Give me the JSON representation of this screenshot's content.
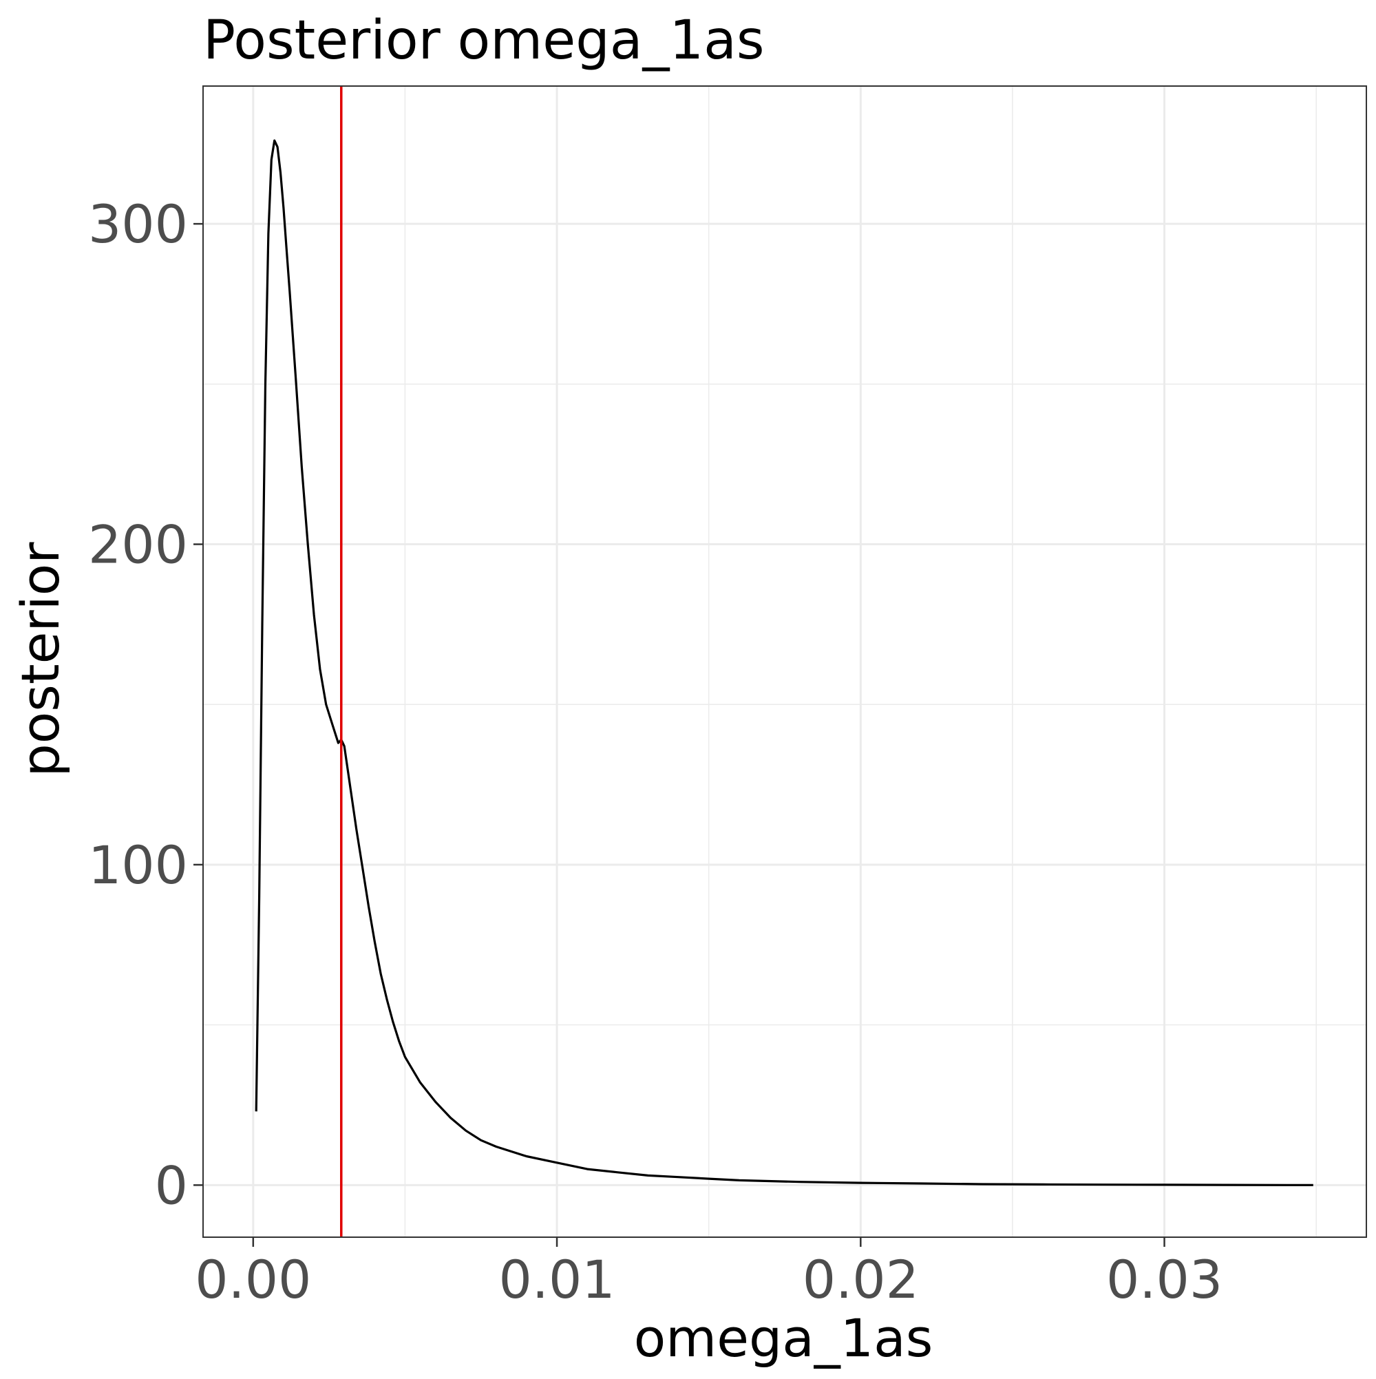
{
  "chart_data": {
    "type": "line",
    "title": "Posterior omega_1as",
    "xlabel": "omega_1as",
    "ylabel": "posterior",
    "xlim": [
      -0.00165,
      0.03665
    ],
    "ylim": [
      -16.25,
      343.0
    ],
    "x_ticks": [
      {
        "value": 0.0,
        "label": "0.00"
      },
      {
        "value": 0.01,
        "label": "0.01"
      },
      {
        "value": 0.02,
        "label": "0.02"
      },
      {
        "value": 0.03,
        "label": "0.03"
      }
    ],
    "x_minor_ticks": [
      0.005,
      0.015,
      0.025,
      0.035
    ],
    "y_ticks": [
      {
        "value": 0,
        "label": "0"
      },
      {
        "value": 100,
        "label": "100"
      },
      {
        "value": 200,
        "label": "200"
      },
      {
        "value": 300,
        "label": "300"
      }
    ],
    "y_minor_ticks": [
      50,
      150,
      250
    ],
    "grid": true,
    "series": [
      {
        "color": "#000000",
        "x": [
          0.0001,
          0.0002,
          0.0003,
          0.0004,
          0.0005,
          0.0006,
          0.0007,
          0.0008,
          0.0009,
          0.001,
          0.0011,
          0.0012,
          0.0014,
          0.0016,
          0.0018,
          0.002,
          0.0022,
          0.0024,
          0.0026,
          0.0028,
          0.0029,
          0.003,
          0.0032,
          0.0034,
          0.0036,
          0.0038,
          0.004,
          0.0042,
          0.0044,
          0.0046,
          0.0048,
          0.005,
          0.0055,
          0.006,
          0.0065,
          0.007,
          0.0075,
          0.008,
          0.009,
          0.01,
          0.011,
          0.012,
          0.013,
          0.014,
          0.015,
          0.016,
          0.018,
          0.02,
          0.022,
          0.024,
          0.026,
          0.028,
          0.03,
          0.032,
          0.034,
          0.0349
        ],
        "y": [
          23,
          90,
          175,
          250,
          297,
          320,
          326,
          324,
          316,
          305,
          292,
          279,
          252,
          224,
          200,
          178,
          161,
          150,
          144,
          138,
          139,
          137,
          124,
          111,
          99,
          87,
          76,
          66,
          58,
          51,
          45,
          40,
          32,
          26,
          21,
          17,
          14,
          12,
          9,
          7,
          5,
          4,
          3,
          2.5,
          2,
          1.5,
          1,
          0.7,
          0.5,
          0.3,
          0.2,
          0.15,
          0.1,
          0.05,
          0.02,
          0.01
        ]
      }
    ],
    "reference_lines": [
      {
        "orientation": "vertical",
        "x": 0.0029,
        "color": "#e00000"
      }
    ]
  }
}
